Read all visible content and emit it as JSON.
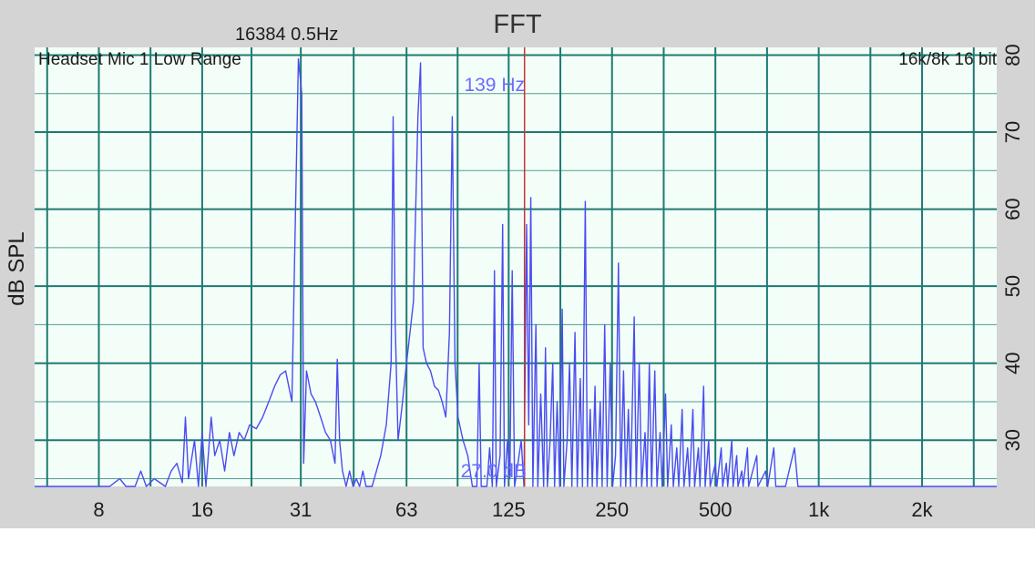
{
  "chart_data": {
    "type": "line",
    "title": "FFT",
    "fft_info": "16384  0.5Hz",
    "source_label": "Headset Mic 1 Low Range",
    "format_label": "16k/8k 16 bit",
    "ylabel": "dB SPL",
    "xlabel": "",
    "x_scale": "log",
    "x_ticks": [
      {
        "value": 8,
        "label": "8"
      },
      {
        "value": 16,
        "label": "16"
      },
      {
        "value": 31,
        "label": "31"
      },
      {
        "value": 63,
        "label": "63"
      },
      {
        "value": 125,
        "label": "125"
      },
      {
        "value": 250,
        "label": "250"
      },
      {
        "value": 500,
        "label": "500"
      },
      {
        "value": 1000,
        "label": "1k"
      },
      {
        "value": 2000,
        "label": "2k"
      }
    ],
    "y_ticks": [
      {
        "value": 30,
        "label": "30"
      },
      {
        "value": 40,
        "label": "40"
      },
      {
        "value": 50,
        "label": "50"
      },
      {
        "value": 60,
        "label": "60"
      },
      {
        "value": 70,
        "label": "70"
      },
      {
        "value": 80,
        "label": "80"
      }
    ],
    "xlim": [
      5.2,
      3300
    ],
    "ylim": [
      24,
      81
    ],
    "grid": true,
    "cursor": {
      "frequency": 139,
      "label": "139 Hz"
    },
    "level_readout": "27.0 dB",
    "series": [
      {
        "color": "#4a4cf0",
        "points": [
          [
            5.2,
            24
          ],
          [
            8.6,
            24
          ],
          [
            9.2,
            25
          ],
          [
            9.6,
            24
          ],
          [
            10.2,
            24
          ],
          [
            10.6,
            26
          ],
          [
            11,
            24
          ],
          [
            11.6,
            25
          ],
          [
            12.5,
            24
          ],
          [
            13,
            26
          ],
          [
            13.5,
            27
          ],
          [
            14,
            24.5
          ],
          [
            14.3,
            33
          ],
          [
            14.6,
            25
          ],
          [
            15.2,
            30
          ],
          [
            15.6,
            24
          ],
          [
            16,
            31
          ],
          [
            16.4,
            24
          ],
          [
            17,
            33
          ],
          [
            17.4,
            28
          ],
          [
            18,
            30
          ],
          [
            18.6,
            26
          ],
          [
            19.2,
            31
          ],
          [
            19.8,
            28
          ],
          [
            20.5,
            31
          ],
          [
            21.2,
            30
          ],
          [
            22,
            32
          ],
          [
            23,
            31.5
          ],
          [
            24,
            33
          ],
          [
            25,
            35
          ],
          [
            26,
            37
          ],
          [
            27,
            38.5
          ],
          [
            28,
            39
          ],
          [
            29.2,
            35
          ],
          [
            30.5,
            79.5
          ],
          [
            31.2,
            75
          ],
          [
            31.6,
            27
          ],
          [
            32.2,
            39
          ],
          [
            33.2,
            36
          ],
          [
            34.2,
            35
          ],
          [
            35.4,
            33
          ],
          [
            36.6,
            31
          ],
          [
            37.8,
            30
          ],
          [
            39,
            27
          ],
          [
            39.6,
            40.5
          ],
          [
            40.2,
            30
          ],
          [
            41,
            26
          ],
          [
            42,
            24
          ],
          [
            43,
            26
          ],
          [
            44,
            24
          ],
          [
            45,
            25
          ],
          [
            46,
            24
          ],
          [
            47,
            26
          ],
          [
            48,
            24
          ],
          [
            50,
            24
          ],
          [
            53,
            28
          ],
          [
            55,
            32
          ],
          [
            56.8,
            40
          ],
          [
            57.6,
            72
          ],
          [
            58.4,
            45
          ],
          [
            59.5,
            30
          ],
          [
            61,
            34
          ],
          [
            63,
            40
          ],
          [
            66,
            48
          ],
          [
            68,
            72
          ],
          [
            69.2,
            79
          ],
          [
            70.4,
            42
          ],
          [
            72,
            40
          ],
          [
            74,
            39
          ],
          [
            76,
            37
          ],
          [
            78,
            36.5
          ],
          [
            80,
            35
          ],
          [
            82,
            33
          ],
          [
            84,
            44
          ],
          [
            85.6,
            72
          ],
          [
            87.2,
            40
          ],
          [
            89,
            33
          ],
          [
            92,
            30
          ],
          [
            95,
            28
          ],
          [
            98,
            24
          ],
          [
            101,
            24
          ],
          [
            102.5,
            40
          ],
          [
            104,
            24
          ],
          [
            108,
            24
          ],
          [
            110,
            29
          ],
          [
            112,
            24
          ],
          [
            113.6,
            52
          ],
          [
            115,
            24
          ],
          [
            118,
            28
          ],
          [
            120,
            58
          ],
          [
            121.5,
            24
          ],
          [
            124,
            30
          ],
          [
            126,
            25
          ],
          [
            128,
            52
          ],
          [
            130,
            24
          ],
          [
            133,
            27
          ],
          [
            136,
            30
          ],
          [
            138.5,
            24
          ],
          [
            141,
            58
          ],
          [
            143,
            32
          ],
          [
            145,
            61.5
          ],
          [
            147,
            24
          ],
          [
            150,
            45
          ],
          [
            152,
            24
          ],
          [
            155,
            36
          ],
          [
            158,
            24
          ],
          [
            160,
            42
          ],
          [
            162,
            24
          ],
          [
            165,
            30
          ],
          [
            168,
            40
          ],
          [
            170,
            24
          ],
          [
            173,
            35
          ],
          [
            176,
            24
          ],
          [
            179,
            47
          ],
          [
            181,
            24
          ],
          [
            185,
            30
          ],
          [
            188,
            40
          ],
          [
            191,
            24
          ],
          [
            195,
            44
          ],
          [
            198,
            24
          ],
          [
            202,
            38
          ],
          [
            205,
            24
          ],
          [
            209,
            61
          ],
          [
            212,
            24
          ],
          [
            216,
            34
          ],
          [
            219,
            24
          ],
          [
            223,
            37
          ],
          [
            226,
            24
          ],
          [
            231,
            35
          ],
          [
            234,
            24
          ],
          [
            238,
            45
          ],
          [
            242,
            24
          ],
          [
            247,
            40
          ],
          [
            251,
            24
          ],
          [
            256,
            28
          ],
          [
            261,
            53
          ],
          [
            265,
            24
          ],
          [
            270,
            39
          ],
          [
            274,
            24
          ],
          [
            279,
            34
          ],
          [
            283,
            24
          ],
          [
            290,
            46
          ],
          [
            294,
            24
          ],
          [
            300,
            40
          ],
          [
            305,
            24
          ],
          [
            312,
            31
          ],
          [
            316,
            24
          ],
          [
            321,
            40
          ],
          [
            326,
            24
          ],
          [
            333,
            39
          ],
          [
            338,
            24
          ],
          [
            345,
            31
          ],
          [
            350,
            24
          ],
          [
            358,
            36
          ],
          [
            363,
            24
          ],
          [
            372,
            32
          ],
          [
            377,
            24
          ],
          [
            386,
            29
          ],
          [
            391,
            24
          ],
          [
            400,
            34
          ],
          [
            405,
            24
          ],
          [
            415,
            29
          ],
          [
            420,
            24
          ],
          [
            430,
            34
          ],
          [
            435,
            24
          ],
          [
            446,
            29
          ],
          [
            451,
            24
          ],
          [
            462,
            37
          ],
          [
            467,
            24
          ],
          [
            478,
            30
          ],
          [
            483,
            24
          ],
          [
            500,
            27
          ],
          [
            505,
            24
          ],
          [
            520,
            29
          ],
          [
            525,
            24
          ],
          [
            538,
            27
          ],
          [
            543,
            24
          ],
          [
            558,
            30
          ],
          [
            563,
            24
          ],
          [
            577,
            28
          ],
          [
            582,
            24
          ],
          [
            597,
            26
          ],
          [
            602,
            24
          ],
          [
            620,
            29
          ],
          [
            625,
            24
          ],
          [
            660,
            28
          ],
          [
            665,
            24
          ],
          [
            700,
            26
          ],
          [
            710,
            24
          ],
          [
            740,
            29
          ],
          [
            750,
            24
          ],
          [
            800,
            24
          ],
          [
            850,
            29
          ],
          [
            870,
            24
          ],
          [
            900,
            24
          ],
          [
            3300,
            24
          ]
        ]
      }
    ]
  }
}
